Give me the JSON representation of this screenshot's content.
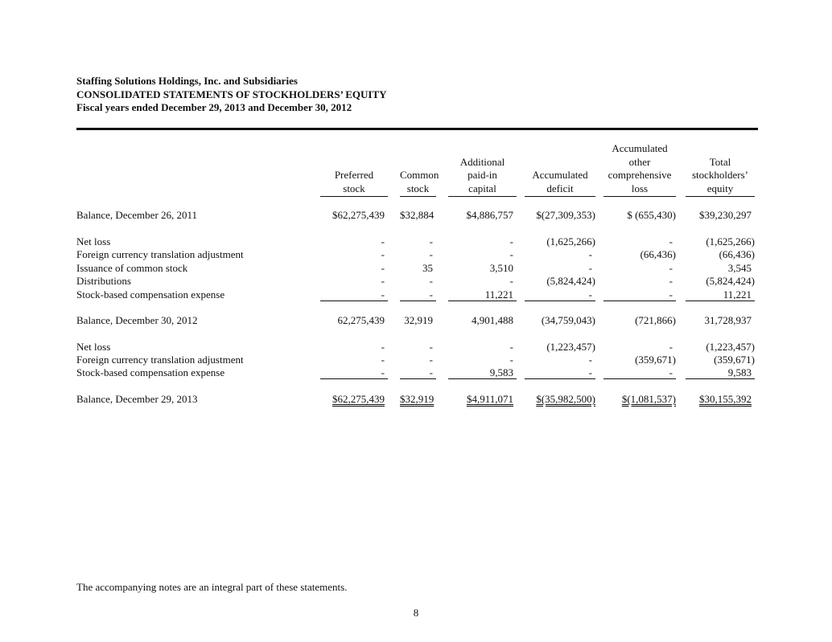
{
  "header": {
    "company": "Staffing Solutions Holdings, Inc. and Subsidiaries",
    "title": "CONSOLIDATED STATEMENTS OF STOCKHOLDERS’ EQUITY",
    "period": "Fiscal years ended December 29, 2013 and December 30, 2012"
  },
  "columns": [
    [
      "Preferred",
      "stock"
    ],
    [
      "Common",
      "stock"
    ],
    [
      "Additional",
      "paid-in",
      "capital"
    ],
    [
      "Accumulated",
      "deficit"
    ],
    [
      "Accumulated",
      "other",
      "comprehensive",
      "loss"
    ],
    [
      "Total",
      "stockholders’",
      "equity"
    ]
  ],
  "rows": [
    {
      "label": "Balance, December 26, 2011",
      "values": [
        "$62,275,439",
        "$32,884",
        "$4,886,757",
        "$(27,309,353)",
        "$ (655,430)",
        "$39,230,297"
      ],
      "style": "plain"
    },
    {
      "label": "Net loss",
      "values": [
        "-",
        "-",
        "-",
        "(1,625,266)",
        "-",
        "(1,625,266)"
      ],
      "style": "plain"
    },
    {
      "label": "Foreign currency translation adjustment",
      "values": [
        "-",
        "-",
        "-",
        "-",
        "(66,436)",
        "(66,436)"
      ],
      "style": "plain"
    },
    {
      "label": "Issuance of common stock",
      "values": [
        "-",
        "35",
        "3,510",
        "-",
        "-",
        "3,545"
      ],
      "style": "plain"
    },
    {
      "label": "Distributions",
      "values": [
        "-",
        "-",
        "-",
        "(5,824,424)",
        "-",
        "(5,824,424)"
      ],
      "style": "plain"
    },
    {
      "label": "Stock-based compensation expense",
      "values": [
        "-",
        "-",
        "11,221",
        "-",
        "-",
        "11,221"
      ],
      "style": "underline"
    },
    {
      "label": "Balance, December 30, 2012",
      "values": [
        "62,275,439",
        "32,919",
        "4,901,488",
        "(34,759,043)",
        "(721,866)",
        "31,728,937"
      ],
      "style": "plain"
    },
    {
      "label": "Net loss",
      "values": [
        "-",
        "-",
        "-",
        "(1,223,457)",
        "-",
        "(1,223,457)"
      ],
      "style": "plain"
    },
    {
      "label": "Foreign currency translation adjustment",
      "values": [
        "-",
        "-",
        "-",
        "-",
        "(359,671)",
        "(359,671)"
      ],
      "style": "plain"
    },
    {
      "label": "Stock-based compensation expense",
      "values": [
        "-",
        "-",
        "9,583",
        "-",
        "-",
        "9,583"
      ],
      "style": "underline"
    },
    {
      "label": "Balance, December 29, 2013",
      "values": [
        "$62,275,439",
        "$32,919",
        "$4,911,071",
        "$(35,982,500)",
        "$(1,081,537)",
        "$30,155,392"
      ],
      "style": "double"
    }
  ],
  "footer": {
    "note": "The accompanying notes are an integral part of these statements.",
    "page_number": "8"
  }
}
